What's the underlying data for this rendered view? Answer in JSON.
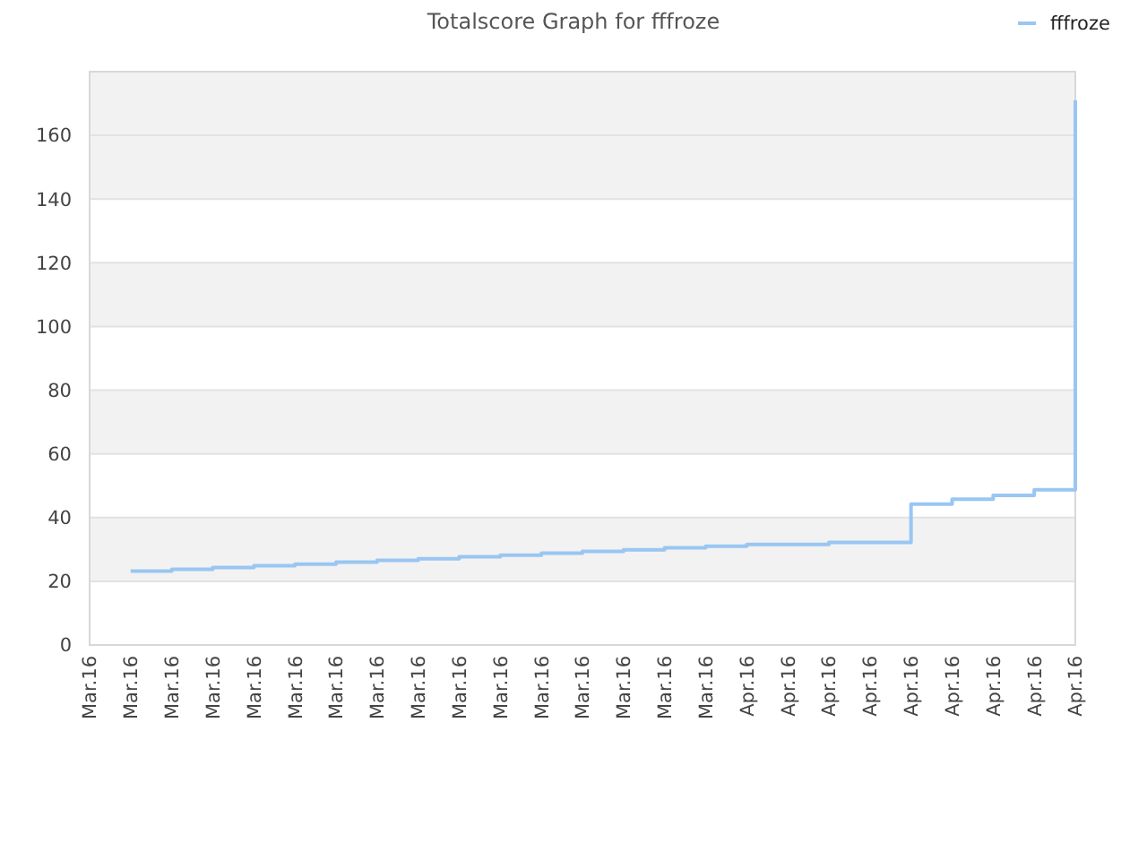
{
  "chart_data": {
    "type": "step",
    "title": "Totalscore Graph for fffroze",
    "legend": "top right",
    "grid": "y",
    "categories": [
      "Mar.16",
      "Mar.16",
      "Mar.16",
      "Mar.16",
      "Mar.16",
      "Mar.16",
      "Mar.16",
      "Mar.16",
      "Mar.16",
      "Mar.16",
      "Mar.16",
      "Mar.16",
      "Mar.16",
      "Mar.16",
      "Mar.16",
      "Mar.16",
      "Apr.16",
      "Apr.16",
      "Apr.16",
      "Apr.16",
      "Apr.16",
      "Apr.16",
      "Apr.16",
      "Apr.16",
      "Apr.16"
    ],
    "ylim": [
      0,
      180
    ],
    "yticks": [
      0,
      20,
      40,
      60,
      80,
      100,
      120,
      140,
      160
    ],
    "series": [
      {
        "name": "fffroze",
        "color": "#99c6f2",
        "values": [
          null,
          23.2,
          23.8,
          24.3,
          24.9,
          25.4,
          26.0,
          26.6,
          27.1,
          27.7,
          28.2,
          28.8,
          29.4,
          29.9,
          30.5,
          31.0,
          31.6,
          31.6,
          32.2,
          32.2,
          44.2,
          45.8,
          47.0,
          48.7,
          171
        ]
      }
    ]
  }
}
